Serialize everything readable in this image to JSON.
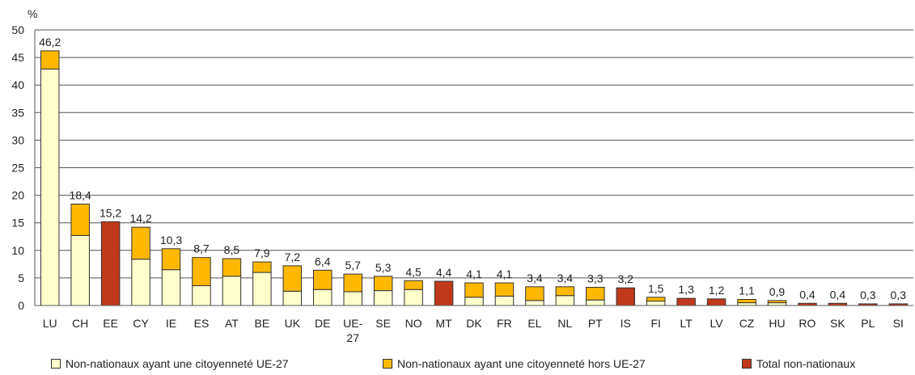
{
  "chart_data": {
    "type": "bar",
    "stacked": true,
    "ylabel": "%",
    "ylim": [
      0,
      50
    ],
    "yticks": [
      0,
      5,
      10,
      15,
      20,
      25,
      30,
      35,
      40,
      45,
      50
    ],
    "grid": true,
    "categories": [
      {
        "label": "LU",
        "total": 46.2,
        "total_label": "46,2",
        "ue27": 42.9,
        "hors": 3.3
      },
      {
        "label": "CH",
        "total": 18.4,
        "total_label": "18,4",
        "ue27": 12.7,
        "hors": 5.7
      },
      {
        "label": "EE",
        "total": 15.2,
        "total_label": "15,2"
      },
      {
        "label": "CY",
        "total": 14.2,
        "total_label": "14,2",
        "ue27": 8.4,
        "hors": 5.8
      },
      {
        "label": "IE",
        "total": 10.3,
        "total_label": "10,3",
        "ue27": 6.5,
        "hors": 3.8
      },
      {
        "label": "ES",
        "total": 8.7,
        "total_label": "8,7",
        "ue27": 3.6,
        "hors": 5.1
      },
      {
        "label": "AT",
        "total": 8.5,
        "total_label": "8,5",
        "ue27": 5.3,
        "hors": 3.2
      },
      {
        "label": "BE",
        "total": 7.9,
        "total_label": "7,9",
        "ue27": 6.0,
        "hors": 1.9
      },
      {
        "label": "UK",
        "total": 7.2,
        "total_label": "7,2",
        "ue27": 2.6,
        "hors": 4.6
      },
      {
        "label": "DE",
        "total": 6.4,
        "total_label": "6,4",
        "ue27": 2.9,
        "hors": 3.5
      },
      {
        "label": "UE-27",
        "total": 5.7,
        "total_label": "5,7",
        "ue27": 2.5,
        "hors": 3.2
      },
      {
        "label": "SE",
        "total": 5.3,
        "total_label": "5,3",
        "ue27": 2.7,
        "hors": 2.6
      },
      {
        "label": "NO",
        "total": 4.5,
        "total_label": "4,5",
        "ue27": 2.9,
        "hors": 1.6
      },
      {
        "label": "MT",
        "total": 4.4,
        "total_label": "4,4"
      },
      {
        "label": "DK",
        "total": 4.1,
        "total_label": "4,1",
        "ue27": 1.5,
        "hors": 2.6
      },
      {
        "label": "FR",
        "total": 4.1,
        "total_label": "4,1",
        "ue27": 1.7,
        "hors": 2.4
      },
      {
        "label": "EL",
        "total": 3.4,
        "total_label": "3,4",
        "ue27": 0.9,
        "hors": 2.5
      },
      {
        "label": "NL",
        "total": 3.4,
        "total_label": "3,4",
        "ue27": 1.8,
        "hors": 1.6
      },
      {
        "label": "PT",
        "total": 3.3,
        "total_label": "3,3",
        "ue27": 1.0,
        "hors": 2.3
      },
      {
        "label": "IS",
        "total": 3.2,
        "total_label": "3,2"
      },
      {
        "label": "FI",
        "total": 1.5,
        "total_label": "1,5",
        "ue27": 0.8,
        "hors": 0.7
      },
      {
        "label": "LT",
        "total": 1.3,
        "total_label": "1,3"
      },
      {
        "label": "LV",
        "total": 1.2,
        "total_label": "1,2"
      },
      {
        "label": "CZ",
        "total": 1.1,
        "total_label": "1,1",
        "ue27": 0.5,
        "hors": 0.6
      },
      {
        "label": "HU",
        "total": 0.9,
        "total_label": "0,9",
        "ue27": 0.5,
        "hors": 0.4
      },
      {
        "label": "RO",
        "total": 0.4,
        "total_label": "0,4"
      },
      {
        "label": "SK",
        "total": 0.4,
        "total_label": "0,4"
      },
      {
        "label": "PL",
        "total": 0.3,
        "total_label": "0,3"
      },
      {
        "label": "SI",
        "total": 0.3,
        "total_label": "0,3"
      }
    ],
    "legend": [
      {
        "key": "ue27",
        "name": "Non-nationaux ayant une citoyenneté UE-27",
        "color": "#ffffcc"
      },
      {
        "key": "hors",
        "name": "Non-nationaux ayant une citoyenneté hors UE-27",
        "color": "#ffb800"
      },
      {
        "key": "total",
        "name": "Total non-nationaux",
        "color": "#c0391b"
      }
    ],
    "legend_position": "bottom"
  }
}
